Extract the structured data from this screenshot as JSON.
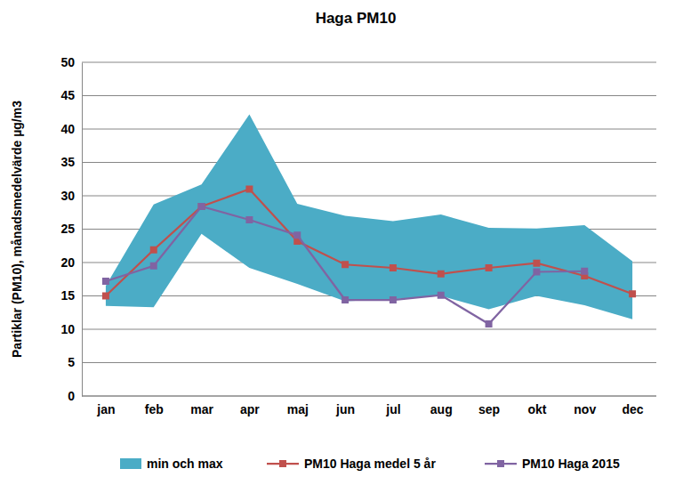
{
  "chart_data": {
    "type": "line",
    "title": "Haga PM10",
    "y_label": "Partiklar (PM10), månadsmedelvärde µg/m3",
    "categories": [
      "jan",
      "feb",
      "mar",
      "apr",
      "maj",
      "jun",
      "jul",
      "aug",
      "sep",
      "okt",
      "nov",
      "dec"
    ],
    "series": [
      {
        "name": "min och max",
        "type": "area",
        "color": "#4bacc6",
        "values": [
          16.5,
          28.7,
          31.7,
          42.2,
          28.8,
          27.0,
          26.2,
          27.2,
          25.2,
          25.1,
          25.6,
          20.2
        ],
        "lower": [
          13.5,
          13.3,
          24.3,
          19.2,
          16.8,
          14.2,
          14.5,
          15.0,
          13.0,
          15.0,
          13.6,
          11.5
        ]
      },
      {
        "name": "PM10 Haga medel 5 år",
        "type": "line",
        "color": "#c0504d",
        "marker": "square",
        "values": [
          15.0,
          21.9,
          28.4,
          31.0,
          23.2,
          19.7,
          19.2,
          18.3,
          19.2,
          19.9,
          18.0,
          15.3
        ]
      },
      {
        "name": "PM10 Haga 2015",
        "type": "line",
        "color": "#8064a2",
        "marker": "square",
        "values": [
          17.2,
          19.5,
          28.4,
          26.4,
          24.1,
          14.4,
          14.4,
          15.1,
          10.8,
          18.6,
          18.7,
          null
        ]
      }
    ],
    "ylim": [
      0,
      50
    ],
    "yticks": [
      0,
      5,
      10,
      15,
      20,
      25,
      30,
      35,
      40,
      45,
      50
    ],
    "grid": true,
    "legend": "bottom"
  }
}
